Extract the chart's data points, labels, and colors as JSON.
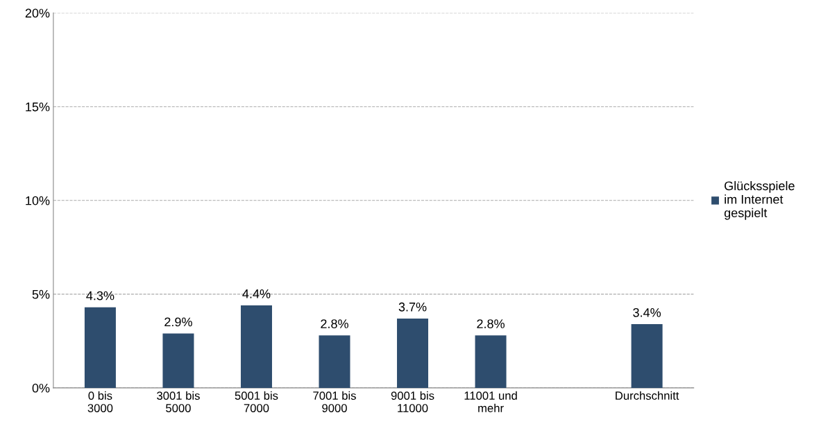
{
  "chart_data": {
    "type": "bar",
    "categories": [
      "0 bis 3000",
      "3001 bis 5000",
      "5001 bis 7000",
      "7001 bis 9000",
      "9001 bis 11000",
      "11001 und mehr",
      null,
      "Durchschnitt"
    ],
    "series": [
      {
        "name": "Glücksspiele im Internet gespielt",
        "color": "#2e4d6e",
        "values": [
          4.3,
          2.9,
          4.4,
          2.8,
          3.7,
          2.8,
          null,
          3.4
        ]
      }
    ],
    "value_labels": [
      "4.3%",
      "2.9%",
      "4.4%",
      "2.8%",
      "3.7%",
      "2.8%",
      null,
      "3.4%"
    ],
    "ylim": [
      0,
      20
    ],
    "yticks": [
      {
        "value": 0,
        "label": "0%"
      },
      {
        "value": 5,
        "label": "5%"
      },
      {
        "value": 10,
        "label": "10%"
      },
      {
        "value": 15,
        "label": "15%"
      },
      {
        "value": 20,
        "label": "20%"
      }
    ],
    "grid": "y",
    "line_style": "dashed",
    "legend": "right"
  }
}
